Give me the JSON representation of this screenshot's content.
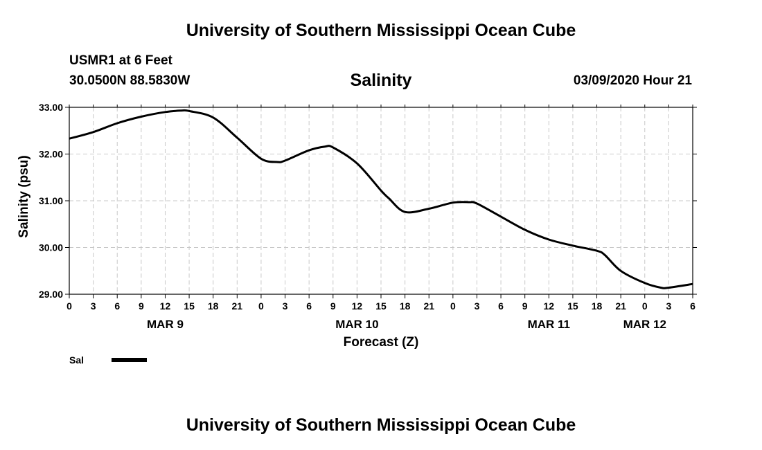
{
  "header": {
    "title": "University of Southern Mississippi Ocean Cube",
    "station": "USMR1 at 6 Feet",
    "coords": "30.0500N 88.5830W",
    "parameter": "Salinity",
    "datetime": "03/09/2020 Hour 21"
  },
  "footer": {
    "title": "University of Southern Mississippi Ocean Cube"
  },
  "chart_data": {
    "type": "line",
    "title": "Salinity",
    "xlabel": "Forecast (Z)",
    "ylabel": "Salinity (psu)",
    "x_unit": "hours from MAR 9 00Z",
    "xlim": [
      0,
      78
    ],
    "ylim": [
      29.0,
      33.0
    ],
    "grid": true,
    "y_ticks": [
      "29.00",
      "30.00",
      "31.00",
      "32.00",
      "33.00"
    ],
    "x_tick_labels": [
      "0",
      "3",
      "6",
      "9",
      "12",
      "15",
      "18",
      "21",
      "0",
      "3",
      "6",
      "9",
      "12",
      "15",
      "18",
      "21",
      "0",
      "3",
      "6",
      "9",
      "12",
      "15",
      "18",
      "21",
      "0",
      "3",
      "6"
    ],
    "date_labels": [
      {
        "label": "MAR 9",
        "x": 12
      },
      {
        "label": "MAR 10",
        "x": 36
      },
      {
        "label": "MAR 11",
        "x": 60
      },
      {
        "label": "MAR 12",
        "x": 72
      }
    ],
    "legend": {
      "position": "bottom-left",
      "label": "Sal"
    },
    "series": [
      {
        "name": "Sal",
        "color": "#000000",
        "x": [
          0,
          3,
          6,
          9,
          12,
          14,
          15,
          18,
          21,
          24,
          26,
          27,
          30,
          32,
          33,
          36,
          39,
          40,
          42,
          45,
          48,
          50,
          51,
          54,
          57,
          60,
          63,
          66,
          67,
          69,
          72,
          74,
          75,
          78
        ],
        "values": [
          32.33,
          32.47,
          32.66,
          32.8,
          32.9,
          32.93,
          32.92,
          32.78,
          32.35,
          31.9,
          31.83,
          31.86,
          32.08,
          32.16,
          32.14,
          31.8,
          31.22,
          31.05,
          30.76,
          30.83,
          30.96,
          30.97,
          30.94,
          30.66,
          30.38,
          30.17,
          30.04,
          29.93,
          29.84,
          29.5,
          29.24,
          29.14,
          29.14,
          29.22
        ]
      }
    ]
  }
}
